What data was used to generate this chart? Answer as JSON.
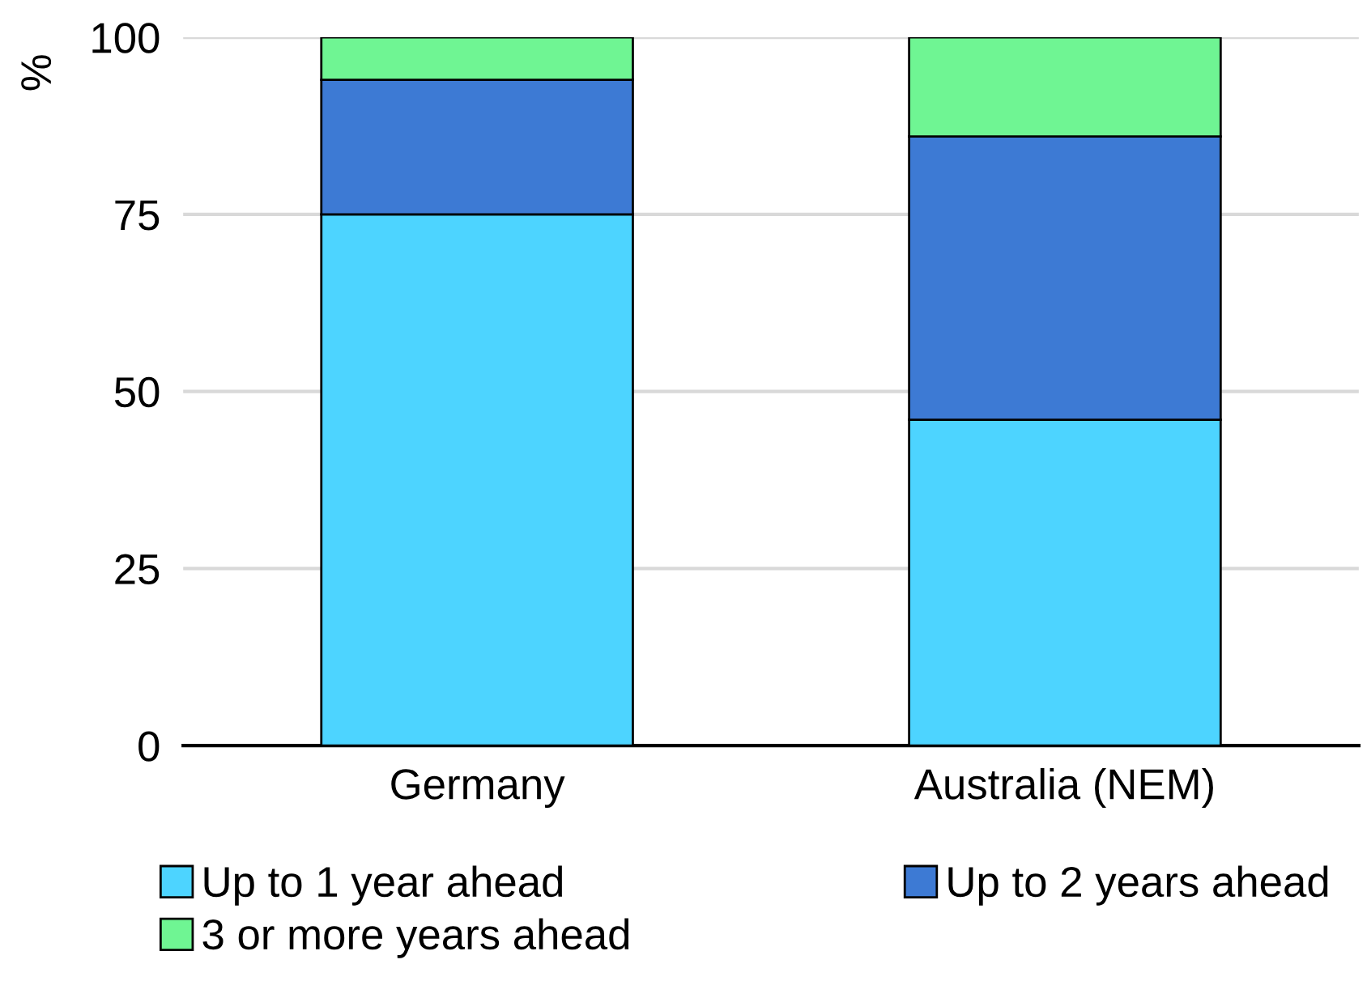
{
  "chart_data": {
    "type": "bar",
    "stacked": true,
    "ylabel": "%",
    "categories": [
      "Germany",
      "Australia (NEM)"
    ],
    "series": [
      {
        "name": "Up to 1 year ahead",
        "color": "#4dd4ff",
        "values": [
          75,
          46
        ]
      },
      {
        "name": "Up to 2 years ahead",
        "color": "#3d7ad4",
        "values": [
          19,
          40
        ]
      },
      {
        "name": "3 or more years ahead",
        "color": "#6ff593",
        "values": [
          6,
          14
        ]
      }
    ],
    "ylim": [
      0,
      100
    ],
    "yticks": [
      0,
      25,
      50,
      75,
      100
    ],
    "grid": "y",
    "legend": "bottom"
  }
}
